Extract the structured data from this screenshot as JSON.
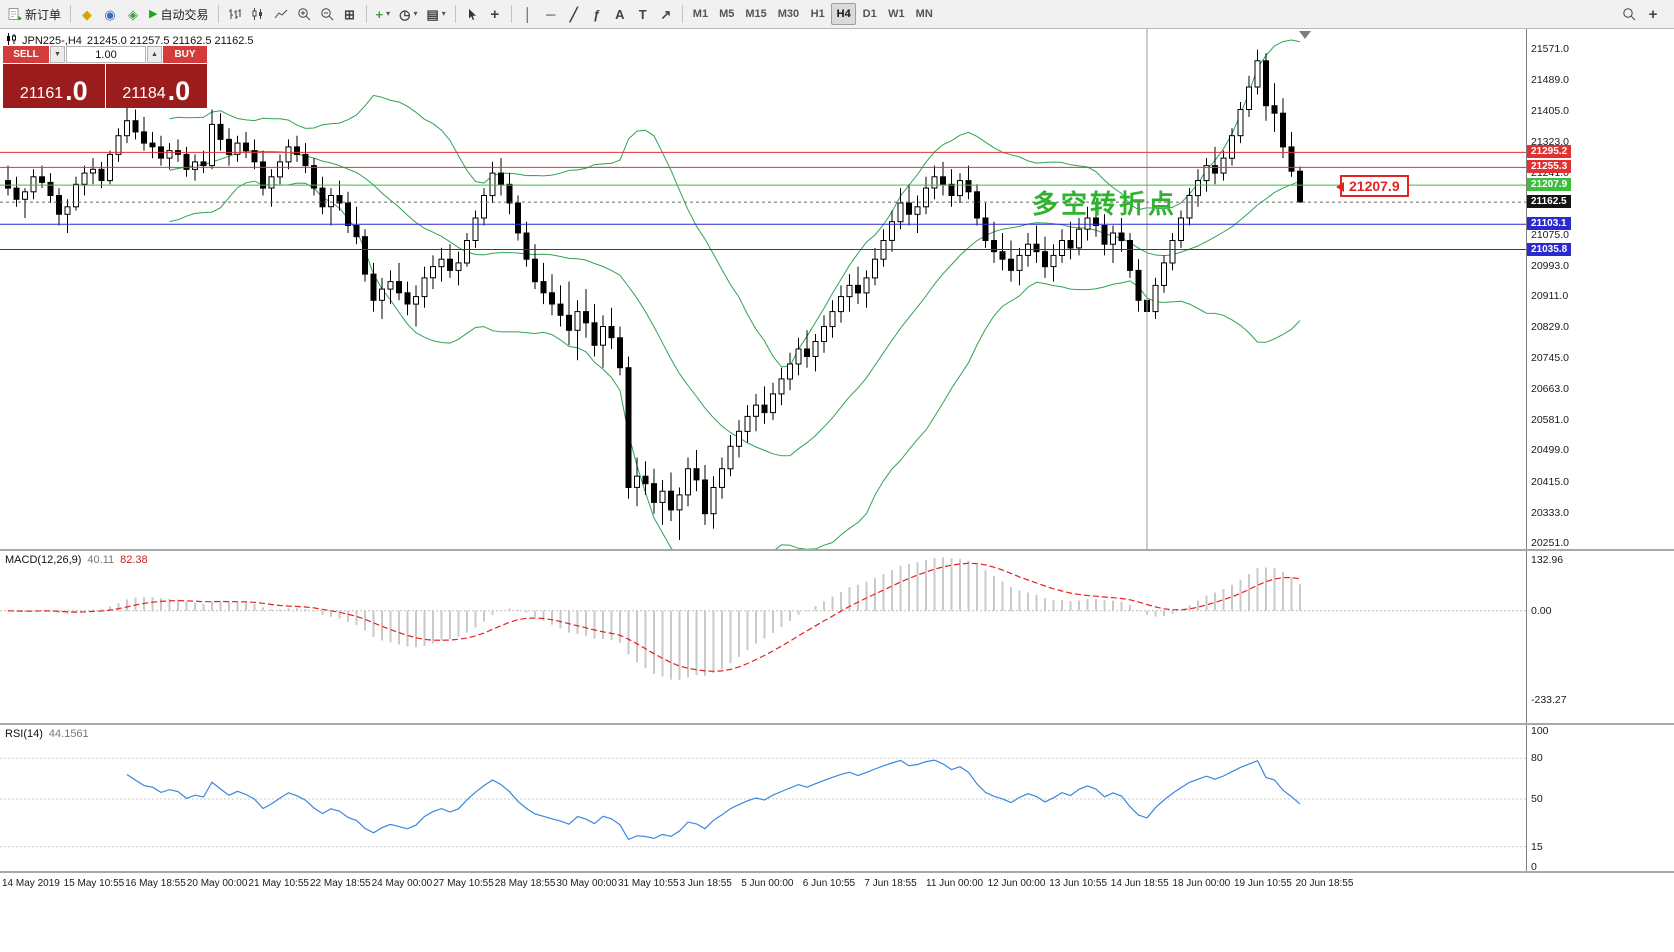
{
  "toolbar": {
    "new_order": "新订单",
    "auto_trading": "自动交易",
    "timeframes": [
      "M1",
      "M5",
      "M15",
      "M30",
      "H1",
      "H4",
      "D1",
      "W1",
      "MN"
    ],
    "active_timeframe": "H4"
  },
  "icons": {
    "gold": "◆",
    "community": "◉",
    "news": "◈",
    "play": "▶",
    "caret": "▾",
    "tile": "⊞",
    "clock": "◷",
    "template": "▤",
    "plus": "+",
    "crosshair": "+",
    "vline": "│",
    "hline": "─",
    "trendline": "╱",
    "fibonacci": "ƒ",
    "text_tool": "A",
    "label_tool": "T",
    "arrow_tool": "↗",
    "spin_up": "▲",
    "spin_down": "▼"
  },
  "chart_header": {
    "symbol_period": "JPN225-,H4",
    "ohlc": "21245.0 21257.5 21162.5 21162.5"
  },
  "trade_panel": {
    "sell_label": "SELL",
    "buy_label": "BUY",
    "volume": "1.00",
    "sell_price_main": "21161",
    "sell_price_frac": ".0",
    "buy_price_main": "21184",
    "buy_price_frac": ".0"
  },
  "annotations": {
    "turning_point": "多空转折点",
    "price_callout": "21207.9"
  },
  "chart_data": {
    "type": "candlestick",
    "symbol": "JPN225",
    "timeframe": "H4",
    "price_axis": {
      "ticks": [
        "21571.0",
        "21489.0",
        "21405.0",
        "21323.0",
        "21241.0",
        "21075.0",
        "20993.0",
        "20911.0",
        "20829.0",
        "20745.0",
        "20663.0",
        "20581.0",
        "20499.0",
        "20415.0",
        "20333.0",
        "20251.0"
      ]
    },
    "hlines": [
      {
        "price": 21295.2,
        "label": "21295.2",
        "color": "#e03232"
      },
      {
        "price": 21255.3,
        "label": "21255.3",
        "color": "#e03232"
      },
      {
        "price": 21207.9,
        "label": "21207.9",
        "color": "#3dbd3d"
      },
      {
        "price": 21103.1,
        "label": "21103.1",
        "color": "#2a2ad0"
      },
      {
        "price": 21035.8,
        "label": "21035.8",
        "color": "#2a2ad0"
      }
    ],
    "current": {
      "price": 21162.5,
      "label": "21162.5",
      "color": "#141414"
    },
    "vline_index": 134,
    "bollinger": {
      "period": 20,
      "deviation": 2,
      "color": "#2fa352"
    },
    "macd": {
      "label": "MACD(12,26,9)",
      "value_main": "40.11",
      "value_signal": "82.38",
      "axis_ticks": [
        "132.96",
        "0.00",
        "-233.27"
      ],
      "hist_color": "#c9c9c9",
      "signal_color": "#e32222"
    },
    "rsi": {
      "label": "RSI(14)",
      "value": "44.1561",
      "axis_ticks": [
        "100",
        "80",
        "50",
        "15",
        "0"
      ],
      "levels": [
        80,
        50,
        15
      ],
      "color": "#3a87e0"
    },
    "time_labels": [
      "14 May 2019",
      "15 May 10:55",
      "16 May 18:55",
      "20 May 00:00",
      "21 May 10:55",
      "22 May 18:55",
      "24 May 00:00",
      "27 May 10:55",
      "28 May 18:55",
      "30 May 00:00",
      "31 May 10:55",
      "3 Jun 18:55",
      "5 Jun 00:00",
      "6 Jun 10:55",
      "7 Jun 18:55",
      "11 Jun 00:00",
      "12 Jun 00:00",
      "13 Jun 10:55",
      "14 Jun 18:55",
      "18 Jun 00:00",
      "19 Jun 10:55",
      "20 Jun 18:55"
    ],
    "candles": [
      [
        21220,
        21260,
        21180,
        21200
      ],
      [
        21200,
        21230,
        21150,
        21170
      ],
      [
        21170,
        21200,
        21120,
        21190
      ],
      [
        21190,
        21250,
        21170,
        21230
      ],
      [
        21230,
        21260,
        21200,
        21215
      ],
      [
        21215,
        21240,
        21160,
        21180
      ],
      [
        21180,
        21200,
        21100,
        21130
      ],
      [
        21130,
        21170,
        21080,
        21150
      ],
      [
        21150,
        21230,
        21140,
        21210
      ],
      [
        21210,
        21260,
        21180,
        21240
      ],
      [
        21240,
        21280,
        21210,
        21250
      ],
      [
        21250,
        21270,
        21200,
        21220
      ],
      [
        21220,
        21300,
        21210,
        21290
      ],
      [
        21290,
        21360,
        21270,
        21340
      ],
      [
        21340,
        21420,
        21320,
        21380
      ],
      [
        21380,
        21410,
        21330,
        21350
      ],
      [
        21350,
        21390,
        21300,
        21320
      ],
      [
        21320,
        21350,
        21280,
        21310
      ],
      [
        21310,
        21340,
        21260,
        21280
      ],
      [
        21280,
        21320,
        21250,
        21300
      ],
      [
        21300,
        21330,
        21270,
        21290
      ],
      [
        21290,
        21310,
        21230,
        21250
      ],
      [
        21250,
        21290,
        21220,
        21270
      ],
      [
        21270,
        21300,
        21240,
        21260
      ],
      [
        21260,
        21410,
        21250,
        21370
      ],
      [
        21370,
        21400,
        21300,
        21330
      ],
      [
        21330,
        21360,
        21260,
        21290
      ],
      [
        21290,
        21340,
        21270,
        21320
      ],
      [
        21320,
        21350,
        21280,
        21300
      ],
      [
        21300,
        21330,
        21250,
        21270
      ],
      [
        21270,
        21300,
        21180,
        21200
      ],
      [
        21200,
        21250,
        21150,
        21230
      ],
      [
        21230,
        21290,
        21210,
        21270
      ],
      [
        21270,
        21330,
        21250,
        21310
      ],
      [
        21310,
        21340,
        21270,
        21290
      ],
      [
        21290,
        21320,
        21240,
        21260
      ],
      [
        21260,
        21280,
        21180,
        21200
      ],
      [
        21200,
        21230,
        21130,
        21150
      ],
      [
        21150,
        21200,
        21100,
        21180
      ],
      [
        21180,
        21220,
        21140,
        21160
      ],
      [
        21160,
        21190,
        21080,
        21100
      ],
      [
        21100,
        21150,
        21050,
        21070
      ],
      [
        21070,
        21090,
        20950,
        20970
      ],
      [
        20970,
        21000,
        20870,
        20900
      ],
      [
        20900,
        20960,
        20850,
        20930
      ],
      [
        20930,
        20980,
        20890,
        20950
      ],
      [
        20950,
        21000,
        20900,
        20920
      ],
      [
        20920,
        20950,
        20860,
        20890
      ],
      [
        20890,
        20940,
        20830,
        20910
      ],
      [
        20910,
        20990,
        20880,
        20960
      ],
      [
        20960,
        21020,
        20930,
        20990
      ],
      [
        20990,
        21040,
        20950,
        21010
      ],
      [
        21010,
        21050,
        20960,
        20980
      ],
      [
        20980,
        21030,
        20940,
        21000
      ],
      [
        21000,
        21080,
        20990,
        21060
      ],
      [
        21060,
        21140,
        21040,
        21120
      ],
      [
        21120,
        21200,
        21100,
        21180
      ],
      [
        21180,
        21270,
        21160,
        21240
      ],
      [
        21240,
        21280,
        21180,
        21210
      ],
      [
        21210,
        21240,
        21130,
        21160
      ],
      [
        21160,
        21180,
        21060,
        21080
      ],
      [
        21080,
        21110,
        20990,
        21010
      ],
      [
        21010,
        21050,
        20930,
        20950
      ],
      [
        20950,
        21000,
        20890,
        20920
      ],
      [
        20920,
        20970,
        20860,
        20890
      ],
      [
        20890,
        20940,
        20830,
        20860
      ],
      [
        20860,
        20950,
        20780,
        20820
      ],
      [
        20820,
        20900,
        20740,
        20870
      ],
      [
        20870,
        20930,
        20800,
        20840
      ],
      [
        20840,
        20890,
        20750,
        20780
      ],
      [
        20780,
        20860,
        20720,
        20830
      ],
      [
        20830,
        20880,
        20770,
        20800
      ],
      [
        20800,
        20830,
        20700,
        20720
      ],
      [
        20720,
        20750,
        20370,
        20400
      ],
      [
        20400,
        20480,
        20350,
        20430
      ],
      [
        20430,
        20470,
        20380,
        20410
      ],
      [
        20410,
        20450,
        20330,
        20360
      ],
      [
        20360,
        20420,
        20300,
        20390
      ],
      [
        20390,
        20440,
        20310,
        20340
      ],
      [
        20340,
        20400,
        20260,
        20380
      ],
      [
        20380,
        20480,
        20350,
        20450
      ],
      [
        20450,
        20500,
        20390,
        20420
      ],
      [
        20420,
        20460,
        20300,
        20330
      ],
      [
        20330,
        20430,
        20290,
        20400
      ],
      [
        20400,
        20480,
        20370,
        20450
      ],
      [
        20450,
        20540,
        20430,
        20510
      ],
      [
        20510,
        20580,
        20480,
        20550
      ],
      [
        20550,
        20620,
        20520,
        20590
      ],
      [
        20590,
        20650,
        20550,
        20620
      ],
      [
        20620,
        20670,
        20570,
        20600
      ],
      [
        20600,
        20680,
        20580,
        20650
      ],
      [
        20650,
        20720,
        20620,
        20690
      ],
      [
        20690,
        20760,
        20660,
        20730
      ],
      [
        20730,
        20800,
        20700,
        20770
      ],
      [
        20770,
        20820,
        20720,
        20750
      ],
      [
        20750,
        20810,
        20710,
        20790
      ],
      [
        20790,
        20860,
        20760,
        20830
      ],
      [
        20830,
        20900,
        20800,
        20870
      ],
      [
        20870,
        20940,
        20840,
        20910
      ],
      [
        20910,
        20970,
        20870,
        20940
      ],
      [
        20940,
        20990,
        20890,
        20920
      ],
      [
        20920,
        20980,
        20880,
        20960
      ],
      [
        20960,
        21040,
        20940,
        21010
      ],
      [
        21010,
        21090,
        20990,
        21060
      ],
      [
        21060,
        21140,
        21030,
        21110
      ],
      [
        21110,
        21200,
        21090,
        21160
      ],
      [
        21160,
        21210,
        21100,
        21130
      ],
      [
        21130,
        21180,
        21080,
        21150
      ],
      [
        21150,
        21230,
        21130,
        21200
      ],
      [
        21200,
        21260,
        21170,
        21230
      ],
      [
        21230,
        21270,
        21180,
        21210
      ],
      [
        21210,
        21250,
        21150,
        21180
      ],
      [
        21180,
        21240,
        21160,
        21220
      ],
      [
        21220,
        21260,
        21170,
        21190
      ],
      [
        21190,
        21210,
        21100,
        21120
      ],
      [
        21120,
        21160,
        21040,
        21060
      ],
      [
        21060,
        21110,
        21000,
        21030
      ],
      [
        21030,
        21080,
        20980,
        21010
      ],
      [
        21010,
        21060,
        20950,
        20980
      ],
      [
        20980,
        21040,
        20940,
        21020
      ],
      [
        21020,
        21080,
        20990,
        21050
      ],
      [
        21050,
        21100,
        21000,
        21030
      ],
      [
        21030,
        21070,
        20960,
        20990
      ],
      [
        20990,
        21050,
        20950,
        21020
      ],
      [
        21020,
        21090,
        21000,
        21060
      ],
      [
        21060,
        21110,
        21010,
        21040
      ],
      [
        21040,
        21120,
        21020,
        21090
      ],
      [
        21090,
        21150,
        21060,
        21120
      ],
      [
        21120,
        21160,
        21070,
        21100
      ],
      [
        21100,
        21130,
        21020,
        21050
      ],
      [
        21050,
        21100,
        21000,
        21080
      ],
      [
        21080,
        21120,
        21030,
        21060
      ],
      [
        21060,
        21080,
        20960,
        20980
      ],
      [
        20980,
        21010,
        20870,
        20900
      ],
      [
        20900,
        20950,
        20830,
        20870
      ],
      [
        20870,
        20960,
        20850,
        20940
      ],
      [
        20940,
        21020,
        20920,
        21000
      ],
      [
        21000,
        21080,
        20980,
        21060
      ],
      [
        21060,
        21140,
        21040,
        21120
      ],
      [
        21120,
        21200,
        21100,
        21180
      ],
      [
        21180,
        21250,
        21150,
        21220
      ],
      [
        21220,
        21280,
        21190,
        21260
      ],
      [
        21260,
        21310,
        21210,
        21240
      ],
      [
        21240,
        21300,
        21220,
        21280
      ],
      [
        21280,
        21360,
        21260,
        21340
      ],
      [
        21340,
        21430,
        21320,
        21410
      ],
      [
        21410,
        21500,
        21390,
        21470
      ],
      [
        21470,
        21570,
        21450,
        21540
      ],
      [
        21540,
        21560,
        21380,
        21420
      ],
      [
        21420,
        21480,
        21350,
        21400
      ],
      [
        21400,
        21440,
        21280,
        21310
      ],
      [
        21310,
        21350,
        21230,
        21245
      ],
      [
        21245,
        21257.5,
        21162.5,
        21162.5
      ]
    ]
  }
}
